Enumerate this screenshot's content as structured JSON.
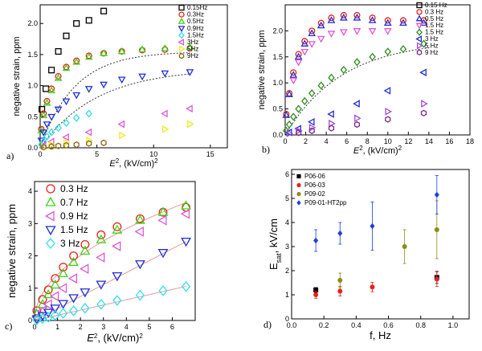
{
  "chart_data": [
    {
      "panel_label": "a)",
      "type": "scatter",
      "xlabel_base": "E",
      "xlabel_sup": "2",
      "xlabel_rest": ", (kV/cm)",
      "xlabel_sup2": "2",
      "ylabel": "negative strain, ppm",
      "xlim": [
        0,
        16.5
      ],
      "ylim": [
        0,
        2.3
      ],
      "xticks": [
        0,
        5,
        10,
        15
      ],
      "yticks": [
        0.0,
        0.5,
        1.0,
        1.5,
        2.0
      ],
      "ytick_labels": [
        "0.0",
        "0.5",
        "1.0",
        "1.5",
        "2.0"
      ],
      "legend_position": "top-right",
      "series": [
        {
          "name": "0.15Hz",
          "marker": "square",
          "color": "#000000",
          "x": [
            0.15,
            0.5,
            1.0,
            1.6,
            2.3,
            3.2,
            4.3,
            5.6
          ],
          "y": [
            0.62,
            0.95,
            1.25,
            1.55,
            1.8,
            2.0,
            2.05,
            2.2
          ]
        },
        {
          "name": "0.3Hz",
          "marker": "circle",
          "color": "#e8221a",
          "x": [
            0.1,
            0.3,
            0.6,
            1.0,
            1.6,
            2.3,
            3.2,
            4.3,
            5.6,
            7.2,
            9.0,
            11.0,
            13.2
          ],
          "y": [
            0.3,
            0.55,
            0.75,
            0.95,
            1.15,
            1.3,
            1.4,
            1.48,
            1.52,
            1.55,
            1.57,
            1.58,
            1.6
          ]
        },
        {
          "name": "0.5Hz",
          "marker": "triangle-up",
          "color": "#3bd617",
          "x": [
            0.1,
            0.3,
            0.6,
            1.0,
            1.6,
            2.3,
            3.2,
            4.3,
            5.6,
            7.2,
            9.0,
            11.0,
            13.2
          ],
          "y": [
            0.28,
            0.52,
            0.72,
            0.92,
            1.12,
            1.28,
            1.38,
            1.46,
            1.52,
            1.55,
            1.58,
            1.6,
            1.62
          ]
        },
        {
          "name": "0.9Hz",
          "marker": "triangle-down",
          "color": "#1e2fd6",
          "x": [
            0.1,
            0.3,
            0.6,
            1.0,
            1.6,
            2.3,
            3.2,
            4.3,
            5.6,
            7.2,
            9.0,
            11.0,
            13.2
          ],
          "y": [
            0.12,
            0.25,
            0.38,
            0.5,
            0.62,
            0.75,
            0.85,
            0.95,
            1.02,
            1.1,
            1.15,
            1.2,
            1.22
          ]
        },
        {
          "name": "1.5Hz",
          "marker": "diamond",
          "color": "#2ee0ee",
          "x": [
            0.1,
            0.3,
            0.6,
            1.0,
            1.6,
            2.3,
            3.2,
            4.3
          ],
          "y": [
            0.05,
            0.1,
            0.18,
            0.25,
            0.32,
            0.4,
            0.48,
            0.55
          ]
        },
        {
          "name": "3Hz",
          "marker": "triangle-left",
          "color": "#e056d6",
          "x": [
            0.3,
            1.0,
            2.3,
            4.3,
            7.2,
            11.0,
            13.2
          ],
          "y": [
            0.04,
            0.1,
            0.17,
            0.25,
            0.38,
            0.55,
            0.63
          ]
        },
        {
          "name": "5Hz",
          "marker": "triangle-right",
          "color": "#f2ea1d",
          "x": [
            0.3,
            1.0,
            2.3,
            4.3,
            7.2,
            11.0,
            13.2
          ],
          "y": [
            0.02,
            0.05,
            0.08,
            0.12,
            0.2,
            0.3,
            0.38
          ]
        },
        {
          "name": "9Hz",
          "marker": "hexagon",
          "color": "#8a6a1a",
          "x": [
            0.3,
            1.0,
            1.6,
            2.3,
            3.2,
            4.3,
            5.6
          ],
          "y": [
            0.01,
            0.02,
            0.03,
            0.04,
            0.05,
            0.07,
            0.08
          ]
        }
      ],
      "fit_curves": [
        {
          "type": "saturation",
          "A": 1.55,
          "k": 0.33
        },
        {
          "type": "saturation",
          "A": 1.28,
          "k": 0.2
        }
      ]
    },
    {
      "panel_label": "b)",
      "type": "scatter",
      "xlabel_base": "E",
      "xlabel_sup": "2",
      "xlabel_rest": ", (kV/cm)",
      "xlabel_sup2": "2",
      "ylabel": "negative strain, ppm",
      "xlim": [
        0,
        18
      ],
      "ylim": [
        0,
        2.5
      ],
      "xticks": [
        0,
        2,
        4,
        6,
        8,
        10,
        12,
        14,
        16,
        18
      ],
      "yticks": [
        0.0,
        0.5,
        1.0,
        1.5,
        2.0
      ],
      "ytick_labels": [
        "0.0",
        "0.5",
        "1.0",
        "1.5",
        "2.0"
      ],
      "legend_position": "top-right",
      "series": [
        {
          "name": "0.15 Hz",
          "marker": "square",
          "color": "#000000",
          "x": [],
          "y": []
        },
        {
          "name": "0.3 Hz",
          "marker": "circle",
          "color": "#e8221a",
          "x": [
            0.1,
            0.4,
            0.8,
            1.3,
            1.9,
            2.6,
            3.5,
            4.5,
            5.7,
            7.0,
            8.5,
            10.0,
            11.5,
            13.5
          ],
          "y": [
            0.4,
            0.8,
            1.2,
            1.55,
            1.8,
            2.0,
            2.15,
            2.25,
            2.3,
            2.3,
            2.25,
            2.2,
            2.2,
            2.2
          ]
        },
        {
          "name": "0.5 Hz",
          "marker": "triangle-up",
          "color": "#1e2fd6",
          "x": [
            0.1,
            0.4,
            0.8,
            1.3,
            1.9,
            2.6,
            3.5,
            4.5,
            5.7,
            7.0,
            8.5,
            10.0,
            11.5,
            13.5
          ],
          "y": [
            0.38,
            0.78,
            1.15,
            1.5,
            1.75,
            1.95,
            2.1,
            2.2,
            2.25,
            2.25,
            2.2,
            2.15,
            2.15,
            2.15
          ]
        },
        {
          "name": "1.5 Hz",
          "marker": "triangle-down",
          "color": "#e056d6",
          "x": [
            0.8,
            1.3,
            1.9,
            2.6,
            3.5,
            4.5,
            5.7,
            7.0,
            8.5,
            10.0
          ],
          "y": [
            1.05,
            1.4,
            1.6,
            1.75,
            1.85,
            1.95,
            1.98,
            2.0,
            2.0,
            2.0
          ]
        },
        {
          "name": "1.5 Hz",
          "marker": "diamond",
          "color": "#2f8c1e",
          "x": [
            0.1,
            0.4,
            0.8,
            1.3,
            1.9,
            2.6,
            3.5,
            4.5,
            5.7,
            7.0,
            8.5,
            10.0,
            11.5,
            13.5
          ],
          "y": [
            0.08,
            0.2,
            0.35,
            0.5,
            0.65,
            0.8,
            0.95,
            1.1,
            1.25,
            1.4,
            1.5,
            1.6,
            1.65,
            1.75
          ]
        },
        {
          "name": "3 Hz",
          "marker": "triangle-left",
          "color": "#1e2fd6",
          "x": [
            0.4,
            1.3,
            2.6,
            4.5,
            7.0,
            10.0,
            13.5
          ],
          "y": [
            0.05,
            0.12,
            0.25,
            0.4,
            0.6,
            0.85,
            1.2
          ]
        },
        {
          "name": "5 Hz",
          "marker": "triangle-right",
          "color": "#a24ad6",
          "x": [
            0.4,
            1.3,
            2.6,
            4.5,
            7.0,
            10.0,
            13.5
          ],
          "y": [
            0.03,
            0.08,
            0.14,
            0.22,
            0.32,
            0.45,
            0.6
          ]
        },
        {
          "name": "9 Hz",
          "marker": "hexagon",
          "color": "#7a2a8a",
          "x": [
            1.3,
            2.6,
            4.5,
            7.0,
            10.0,
            13.5
          ],
          "y": [
            0.04,
            0.08,
            0.13,
            0.2,
            0.3,
            0.42
          ]
        }
      ],
      "fit_curves": [
        {
          "type": "saturation",
          "A": 1.82,
          "k": 0.18
        }
      ]
    },
    {
      "panel_label": "c)",
      "type": "scatter",
      "xlabel_base": "E",
      "xlabel_sup": "2",
      "xlabel_rest": ", (kV/cm)",
      "xlabel_sup2": "2",
      "ylabel": "negative strain, ppm",
      "xlim": [
        0,
        7
      ],
      "ylim": [
        0,
        4.3
      ],
      "xticks": [
        0,
        1,
        2,
        3,
        4,
        5,
        6
      ],
      "yticks": [
        0,
        1,
        2,
        3,
        4
      ],
      "ytick_labels": [
        "0",
        "1",
        "2",
        "3",
        "4"
      ],
      "legend_position": "top-left",
      "series": [
        {
          "name": "0.3 Hz",
          "marker": "circle",
          "color": "#e8221a",
          "x": [
            0.1,
            0.35,
            0.6,
            0.9,
            1.25,
            1.7,
            2.2,
            2.9,
            3.6,
            4.6,
            5.6,
            6.6
          ],
          "y": [
            0.3,
            0.65,
            0.95,
            1.3,
            1.65,
            2.0,
            2.35,
            2.65,
            2.9,
            3.15,
            3.35,
            3.5
          ]
        },
        {
          "name": "0.7 Hz",
          "marker": "triangle-up",
          "color": "#3bd617",
          "x": [
            0.1,
            0.35,
            0.6,
            0.9,
            1.25,
            1.7,
            2.2,
            2.9,
            3.6,
            4.6,
            5.6,
            6.6
          ],
          "y": [
            0.2,
            0.5,
            0.8,
            1.1,
            1.45,
            1.8,
            2.15,
            2.5,
            2.8,
            3.1,
            3.35,
            3.55
          ]
        },
        {
          "name": "0.9 Hz",
          "marker": "triangle-left",
          "color": "#e056d6",
          "x": [
            0.1,
            0.35,
            0.6,
            0.9,
            1.25,
            1.7,
            2.2,
            2.9,
            3.6,
            4.6,
            5.6,
            6.6
          ],
          "y": [
            0.1,
            0.3,
            0.5,
            0.75,
            1.0,
            1.3,
            1.6,
            1.95,
            2.3,
            2.75,
            3.1,
            3.3
          ]
        },
        {
          "name": "1.5 Hz",
          "marker": "triangle-down",
          "color": "#1e2fd6",
          "x": [
            0.1,
            0.35,
            0.6,
            0.9,
            1.25,
            1.7,
            2.2,
            2.9,
            3.6,
            4.6,
            5.6,
            6.6
          ],
          "y": [
            0.05,
            0.15,
            0.25,
            0.38,
            0.52,
            0.7,
            0.88,
            1.12,
            1.38,
            1.75,
            2.1,
            2.45
          ]
        },
        {
          "name": "3 Hz",
          "marker": "diamond",
          "color": "#2ee0ee",
          "x": [
            0.1,
            0.35,
            0.6,
            0.9,
            1.25,
            1.7,
            2.2,
            2.9,
            3.6,
            4.6,
            5.6,
            6.6
          ],
          "y": [
            0.02,
            0.06,
            0.1,
            0.16,
            0.22,
            0.3,
            0.38,
            0.5,
            0.62,
            0.78,
            0.92,
            1.05
          ]
        }
      ],
      "fit_curves": [
        {
          "type": "sqrt",
          "a": 1.42,
          "b": 0.0
        },
        {
          "type": "linear",
          "m": 0.37
        },
        {
          "type": "linear",
          "m": 0.16
        }
      ]
    },
    {
      "panel_label": "d)",
      "type": "scatter",
      "xlabel": "f, Hz",
      "ylabel_base": "E",
      "ylabel_sub": "sat",
      "ylabel_rest": ", kV/cm",
      "xlim": [
        0,
        1.1
      ],
      "ylim": [
        0,
        6.2
      ],
      "xticks": [
        0.0,
        0.2,
        0.4,
        0.6,
        0.8,
        1.0
      ],
      "xtick_labels": [
        "0.0",
        "0.2",
        "0.4",
        "0.6",
        "0.8",
        "1.0"
      ],
      "yticks": [
        0,
        1,
        2,
        3,
        4,
        5,
        6
      ],
      "ytick_labels": [
        "0",
        "1",
        "2",
        "3",
        "4",
        "5",
        "6"
      ],
      "legend_position": "top-left",
      "series": [
        {
          "name": "P06-06",
          "marker": "square",
          "color": "#000000",
          "x": [
            0.15,
            0.9
          ],
          "y": [
            1.2,
            1.72
          ],
          "err": [
            0.1,
            0.25
          ]
        },
        {
          "name": "P06-03",
          "marker": "circle",
          "color": "#e8221a",
          "x": [
            0.15,
            0.3,
            0.5,
            0.9
          ],
          "y": [
            1.0,
            1.15,
            1.32,
            1.65
          ],
          "err": [
            0.15,
            0.2,
            0.2,
            0.3
          ]
        },
        {
          "name": "P09-02",
          "marker": "circle",
          "color": "#8c8c1a",
          "x": [
            0.3,
            0.7,
            0.9
          ],
          "y": [
            1.6,
            3.0,
            3.7
          ],
          "err": [
            0.3,
            0.7,
            1.2
          ]
        },
        {
          "name": "P09-01-HT2pp",
          "marker": "diamond",
          "color": "#1e3fe0",
          "x": [
            0.15,
            0.3,
            0.5,
            0.9
          ],
          "y": [
            3.25,
            3.55,
            3.85,
            5.15
          ],
          "err": [
            0.45,
            0.45,
            1.0,
            0.8
          ]
        }
      ]
    }
  ]
}
